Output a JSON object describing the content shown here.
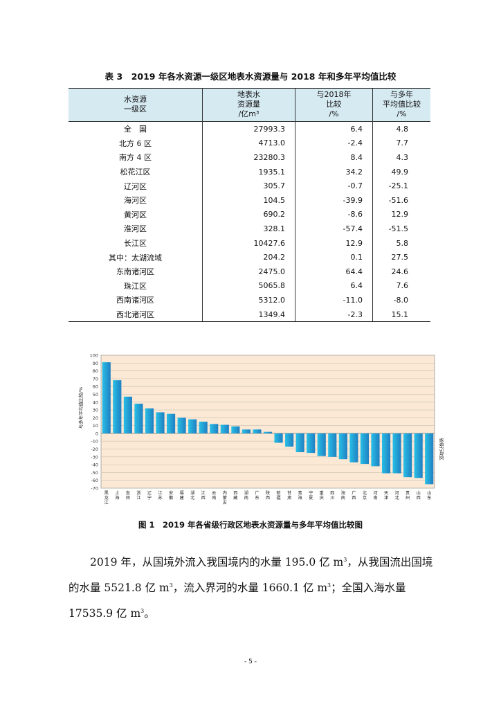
{
  "table": {
    "title": "表 3　2019 年各水资源一级区地表水资源量与 2018 年和多年平均值比较",
    "headers": [
      [
        "水资源",
        "一级区"
      ],
      [
        "地表水",
        "资源量",
        "/亿m³"
      ],
      [
        "与2018年",
        "比较",
        "/%"
      ],
      [
        "与多年",
        "平均值比较",
        "/%"
      ]
    ],
    "rows": [
      [
        "全　国",
        "27993.3",
        "6.4",
        "4.8"
      ],
      [
        "北方 6 区",
        "4713.0",
        "-2.4",
        "7.7"
      ],
      [
        "南方 4 区",
        "23280.3",
        "8.4",
        "4.3"
      ],
      [
        "松花江区",
        "1935.1",
        "34.2",
        "49.9"
      ],
      [
        "辽河区",
        "305.7",
        "-0.7",
        "-25.1"
      ],
      [
        "海河区",
        "104.5",
        "-39.9",
        "-51.6"
      ],
      [
        "黄河区",
        "690.2",
        "-8.6",
        "12.9"
      ],
      [
        "淮河区",
        "328.1",
        "-57.4",
        "-51.5"
      ],
      [
        "长江区",
        "10427.6",
        "12.9",
        "5.8"
      ],
      [
        "其中：太湖流域",
        "204.2",
        "0.1",
        "27.5"
      ],
      [
        "东南诸河区",
        "2475.0",
        "64.4",
        "24.6"
      ],
      [
        "珠江区",
        "5065.8",
        "6.4",
        "7.6"
      ],
      [
        "西南诸河区",
        "5312.0",
        "-11.0",
        "-8.0"
      ],
      [
        "西北诸河区",
        "1349.4",
        "-2.3",
        "15.1"
      ]
    ]
  },
  "chart_data": {
    "type": "bar",
    "title": "图 1　2019 年各省级行政区地表水资源量与多年平均值比较图",
    "ylabel": "与多年平均值比较/%",
    "xlabel": "省级行政区",
    "ylim": [
      -70,
      100
    ],
    "yticks": [
      100,
      90,
      80,
      70,
      60,
      50,
      40,
      30,
      20,
      10,
      0,
      -10,
      -20,
      -30,
      -40,
      -50,
      -60,
      -70
    ],
    "grid": true,
    "categories": [
      "黑龙江",
      "上海",
      "吉林",
      "浙江",
      "辽宁",
      "江苏",
      "安徽",
      "福建",
      "湖北",
      "江西",
      "云南",
      "内蒙古",
      "西藏",
      "湖南",
      "广东",
      "陕西",
      "新疆",
      "甘肃",
      "青海",
      "宁夏",
      "重庆",
      "四川",
      "海南",
      "广西",
      "北京",
      "河南",
      "天津",
      "河北",
      "贵州",
      "山西",
      "山东"
    ],
    "values": [
      91,
      68,
      47,
      38,
      32,
      27,
      25,
      20,
      18,
      15,
      12,
      11,
      9,
      5,
      5,
      2,
      -12,
      -17,
      -24,
      -25,
      -29,
      -30,
      -33,
      -37,
      -39,
      -42,
      -51,
      -51,
      -56,
      -57,
      -65
    ],
    "bar_color_top": "#28c0e6",
    "bar_color_bottom": "#1f7fc2",
    "plot_background": "#fbe9d6",
    "grid_color": "#c9bfb0"
  },
  "paragraph": {
    "line1": "2019 年，从国境外流入我国境内的水量 195.0 亿 m",
    "sup1": "3",
    "line1b": "，从我国流出国境的水量 5521.8 亿 m",
    "sup2": "3",
    "line1c": "，流入界河的水量 1660.1 亿 m",
    "sup3": "3",
    "line1d": "；全国入海水量 17535.9 亿 m",
    "sup4": "3",
    "line1e": "。"
  },
  "page_number": "- 5 -"
}
